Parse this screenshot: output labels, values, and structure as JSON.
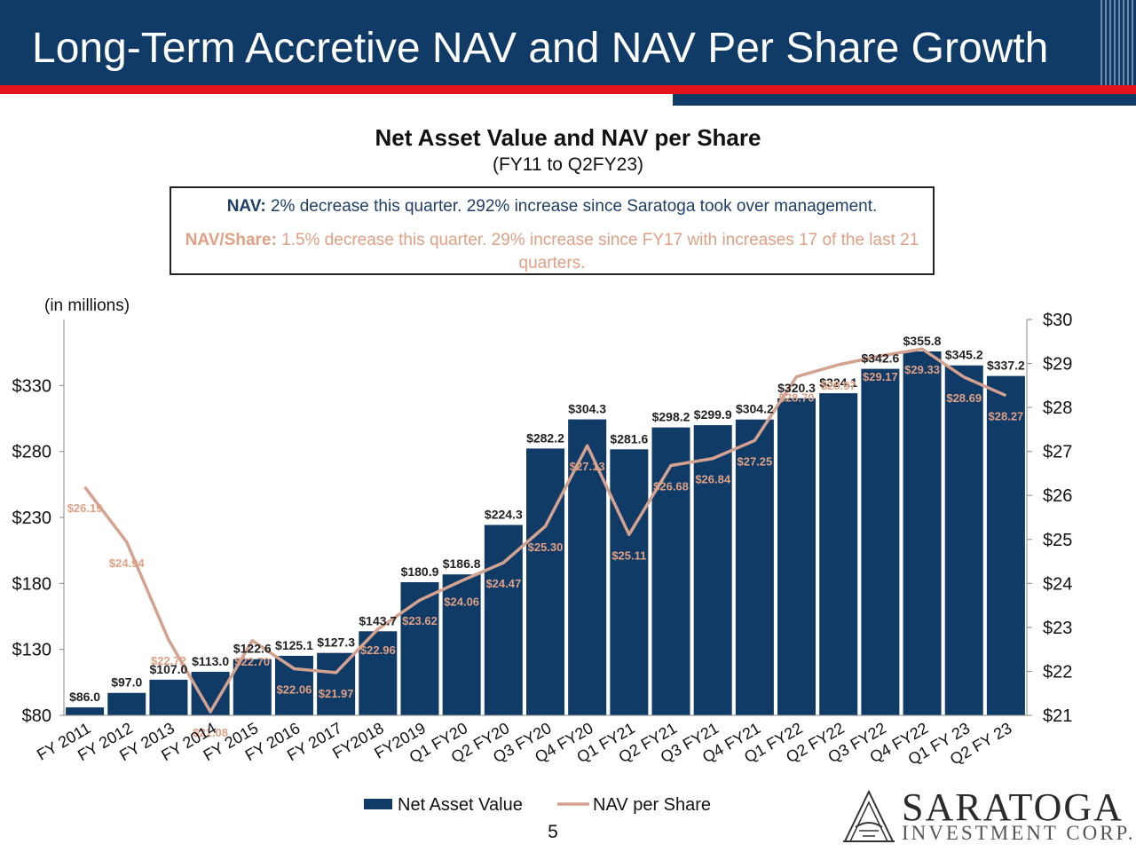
{
  "header": {
    "title": "Long-Term Accretive NAV and NAV Per Share Growth"
  },
  "chart_title": "Net Asset Value and NAV per Share",
  "chart_subtitle": "(FY11 to Q2FY23)",
  "callout": {
    "nav_label": "NAV:",
    "nav_text": "2% decrease this quarter. 292% increase since Saratoga took over management.",
    "share_label": "NAV/Share:",
    "share_text": "1.5% decrease this quarter. 29% increase since FY17 with increases 17 of the last 21 quarters."
  },
  "units_note": "(in millions)",
  "page_number": "5",
  "logo": {
    "name": "SARATOGA",
    "tagline": "INVESTMENT CORP."
  },
  "colors": {
    "header": "#0f3b66",
    "accent_red": "#e4141b",
    "bar": "#0f3b66",
    "line": "#d4a290",
    "share_label": "#e0a085"
  },
  "chart_data": {
    "type": "bar",
    "categories": [
      "FY 2011",
      "FY 2012",
      "FY 2013",
      "FY 2014",
      "FY 2015",
      "FY 2016",
      "FY 2017",
      "FY2018",
      "FY2019",
      "Q1 FY20",
      "Q2 FY20",
      "Q3 FY20",
      "Q4 FY20",
      "Q1 FY21",
      "Q2 FY21",
      "Q3 FY21",
      "Q4 FY21",
      "Q1 FY22",
      "Q2 FY22",
      "Q3 FY22",
      "Q4 FY22",
      "Q1 FY 23",
      "Q2 FY 23"
    ],
    "series": [
      {
        "name": "Net Asset Value",
        "type": "bar",
        "axis": "left",
        "values": [
          86.0,
          97.0,
          107.0,
          113.0,
          122.6,
          125.1,
          127.3,
          143.7,
          180.9,
          186.8,
          224.3,
          282.2,
          304.3,
          281.6,
          298.2,
          299.9,
          304.2,
          320.3,
          324.1,
          342.6,
          355.8,
          345.2,
          337.2
        ],
        "labels": [
          "$86.0",
          "$97.0",
          "$107.0",
          "$113.0",
          "$122.6",
          "$125.1",
          "$127.3",
          "$143.7",
          "$180.9",
          "$186.8",
          "$224.3",
          "$282.2",
          "$304.3",
          "$281.6",
          "$298.2",
          "$299.9",
          "$304.2",
          "$320.3",
          "$324.1",
          "$342.6",
          "$355.8",
          "$345.2",
          "$337.2"
        ]
      },
      {
        "name": "NAV per Share",
        "type": "line",
        "axis": "right",
        "values": [
          26.19,
          24.94,
          22.72,
          21.08,
          22.7,
          22.06,
          21.97,
          22.96,
          23.62,
          24.06,
          24.47,
          25.3,
          27.13,
          25.11,
          26.68,
          26.84,
          27.25,
          28.7,
          28.97,
          29.17,
          29.33,
          28.69,
          28.27
        ],
        "labels": [
          "$26.19",
          "$24.94",
          "$22.72",
          "$21.08",
          "$22.70",
          "$22.06",
          "$21.97",
          "$22.96",
          "$23.62",
          "$24.06",
          "$24.47",
          "$25.30",
          "$27.13",
          "$25.11",
          "$26.68",
          "$26.84",
          "$27.25",
          "$28.70",
          "$28.97",
          "$29.17",
          "$29.33",
          "$28.69",
          "$28.27"
        ]
      }
    ],
    "y_left": {
      "min": 80,
      "max": 380,
      "ticks": [
        80,
        130,
        180,
        230,
        280,
        330
      ],
      "tick_labels": [
        "$80",
        "$130",
        "$180",
        "$230",
        "$280",
        "$330"
      ]
    },
    "y_right": {
      "min": 21,
      "max": 30,
      "ticks": [
        21,
        22,
        23,
        24,
        25,
        26,
        27,
        28,
        29,
        30
      ],
      "tick_labels": [
        "$21",
        "$22",
        "$23",
        "$24",
        "$25",
        "$26",
        "$27",
        "$28",
        "$29",
        "$30"
      ]
    },
    "grid": false,
    "legend": {
      "position": "bottom",
      "entries": [
        "Net Asset Value",
        "NAV per Share"
      ]
    }
  }
}
